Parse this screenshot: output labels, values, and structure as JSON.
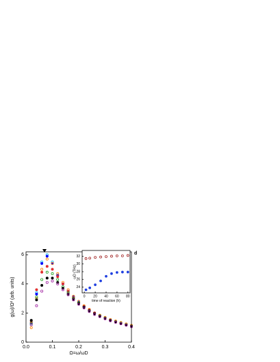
{
  "chart_data": [
    {
      "type": "scatter",
      "annotation": "d",
      "xlabel": "Ω=ω/ωD",
      "ylabel": "g(ω)/Ω² (arb. units)",
      "xlim": [
        0,
        0.4
      ],
      "ylim": [
        0,
        6.2
      ],
      "xticks": [
        {
          "value": 0,
          "label": "0.0"
        },
        0.1,
        0.2,
        0.3,
        0.4
      ],
      "yticks": [
        0,
        2,
        4,
        6
      ],
      "x": [
        0.02,
        0.04,
        0.06,
        0.08,
        0.1,
        0.12,
        0.14,
        0.16,
        0.18,
        0.2,
        0.22,
        0.24,
        0.26,
        0.28,
        0.3,
        0.32,
        0.34,
        0.36,
        0.38,
        0.4
      ],
      "series": [
        {
          "color": "#00b0f0",
          "values": [
            1.2,
            3.4,
            5.5,
            6.0,
            5.5,
            4.6,
            4.0,
            3.5,
            3.1,
            2.75,
            2.45,
            2.2,
            2.0,
            1.8,
            1.65,
            1.5,
            1.4,
            1.3,
            1.2,
            1.1
          ]
        },
        {
          "color": "#0000ff",
          "values": [
            1.3,
            3.3,
            5.4,
            5.9,
            5.4,
            4.6,
            4.0,
            3.5,
            3.1,
            2.75,
            2.45,
            2.2,
            2.0,
            1.8,
            1.65,
            1.5,
            1.4,
            1.3,
            1.2,
            1.1
          ]
        },
        {
          "color": "#ff8000",
          "values": [
            1.0,
            3.0,
            5.0,
            5.7,
            5.4,
            4.7,
            4.1,
            3.6,
            3.15,
            2.8,
            2.5,
            2.25,
            2.0,
            1.85,
            1.7,
            1.55,
            1.45,
            1.35,
            1.25,
            1.15
          ]
        },
        {
          "color": "#e03030",
          "values": [
            1.4,
            3.6,
            4.8,
            5.2,
            5.0,
            4.5,
            4.0,
            3.5,
            3.05,
            2.7,
            2.45,
            2.2,
            2.0,
            1.8,
            1.65,
            1.5,
            1.4,
            1.3,
            1.2,
            1.1
          ]
        },
        {
          "color": "#20a020",
          "values": [
            1.3,
            3.1,
            4.3,
            4.8,
            4.7,
            4.3,
            3.8,
            3.4,
            3.0,
            2.7,
            2.4,
            2.15,
            1.95,
            1.8,
            1.65,
            1.5,
            1.4,
            1.3,
            1.2,
            1.1
          ]
        },
        {
          "color": "#000000",
          "values": [
            1.5,
            2.9,
            3.9,
            4.4,
            4.4,
            4.1,
            3.7,
            3.3,
            2.95,
            2.65,
            2.4,
            2.15,
            1.95,
            1.78,
            1.63,
            1.5,
            1.38,
            1.28,
            1.18,
            1.08
          ]
        },
        {
          "color": "#a020a0",
          "values": [
            1.2,
            2.5,
            3.5,
            4.1,
            4.2,
            4.0,
            3.6,
            3.25,
            2.9,
            2.6,
            2.35,
            2.1,
            1.9,
            1.75,
            1.6,
            1.47,
            1.36,
            1.26,
            1.16,
            1.06
          ]
        }
      ]
    },
    {
      "type": "scatter",
      "xlabel": "time of reaction (h)",
      "ylabel": "ωD (THz)",
      "xlim": [
        -4,
        84
      ],
      "ylim": [
        22.5,
        33.5
      ],
      "xticks": [
        0,
        20,
        40,
        60,
        80
      ],
      "yticks": [
        24,
        26,
        28,
        30,
        32
      ],
      "x": [
        3,
        10,
        20,
        30,
        40,
        50,
        60,
        70,
        80
      ],
      "series": [
        {
          "color": "#a02020",
          "values": [
            31.4,
            31.5,
            31.7,
            31.8,
            31.9,
            32.0,
            32.1,
            32.1,
            32.2
          ]
        },
        {
          "color": "#2040e0",
          "values": [
            23.3,
            23.8,
            24.6,
            25.6,
            26.8,
            27.5,
            27.8,
            27.9,
            27.9
          ]
        }
      ]
    }
  ]
}
